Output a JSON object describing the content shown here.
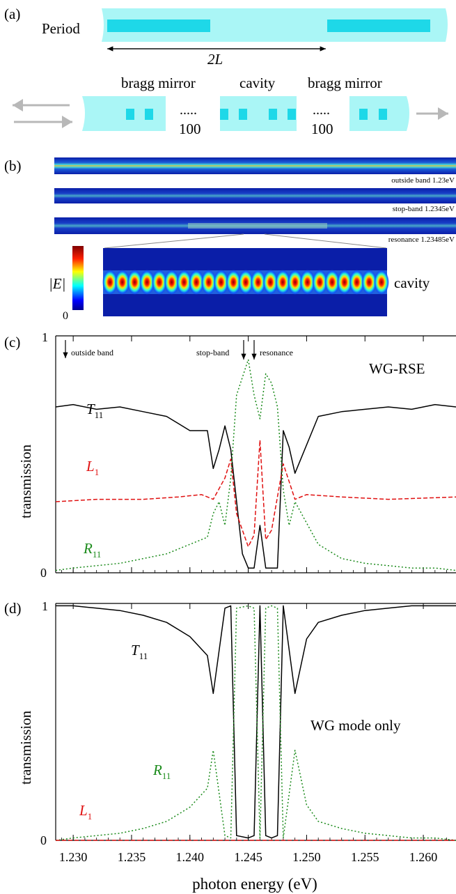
{
  "panel_a": {
    "label": "(a)",
    "period_label": "Period",
    "span_label": "2L",
    "mirror_left_label": "bragg mirror",
    "cavity_label": "cavity",
    "mirror_right_label": "bragg mirror",
    "dots_left": ".....",
    "count_left": "100",
    "dots_right": ".....",
    "count_right": "100",
    "colors": {
      "waveguide": "#aaf6f6",
      "block": "#1ed8e8",
      "arrow": "#b8b8b8"
    }
  },
  "panel_b": {
    "label": "(b)",
    "strip_labels": [
      "outside band 1.23eV",
      "stop-band 1.2345eV",
      "resonance 1.23485eV"
    ],
    "colorbar_label": "|E|",
    "colorbar_min": "0",
    "cavity_label": "cavity",
    "zoom_spot_count": 23
  },
  "panel_c": {
    "label": "(c)",
    "y_tick_top": "1",
    "y_tick_bottom": "0",
    "ylabel": "transmission",
    "annotation_outside": "outside band",
    "annotation_stop": "stop-band",
    "annotation_res": "resonance",
    "title": "WG-RSE",
    "label_T": "T",
    "label_T_sub": "11",
    "label_L": "L",
    "label_L_sub": "1",
    "label_R": "R",
    "label_R_sub": "11"
  },
  "panel_d": {
    "label": "(d)",
    "y_tick_top": "1",
    "y_tick_bottom": "0",
    "ylabel": "transmission",
    "title": "WG mode only",
    "label_T": "T",
    "label_T_sub": "11",
    "label_R": "R",
    "label_R_sub": "11",
    "label_L": "L",
    "label_L_sub": "1"
  },
  "x_axis": {
    "label": "photon energy (eV)",
    "ticks": [
      "1.230",
      "1.235",
      "1.240",
      "1.245",
      "1.250",
      "1.255",
      "1.260"
    ]
  },
  "chart_data": [
    {
      "type": "line",
      "panel": "c",
      "ylabel": "transmission",
      "xlim": [
        1.2285,
        1.2628
      ],
      "ylim": [
        0,
        1
      ],
      "series": [
        {
          "name": "T11",
          "color": "#000000",
          "style": "solid",
          "x": [
            1.2285,
            1.23,
            1.232,
            1.234,
            1.236,
            1.238,
            1.24,
            1.2415,
            1.242,
            1.2425,
            1.243,
            1.2435,
            1.2445,
            1.245,
            1.2455,
            1.246,
            1.2465,
            1.247,
            1.2475,
            1.248,
            1.2485,
            1.249,
            1.251,
            1.253,
            1.255,
            1.257,
            1.259,
            1.261,
            1.2628
          ],
          "y": [
            0.7,
            0.71,
            0.69,
            0.7,
            0.68,
            0.66,
            0.6,
            0.6,
            0.44,
            0.52,
            0.62,
            0.52,
            0.08,
            0.02,
            0.02,
            0.2,
            0.02,
            0.02,
            0.02,
            0.6,
            0.53,
            0.42,
            0.66,
            0.68,
            0.69,
            0.7,
            0.69,
            0.71,
            0.7
          ]
        },
        {
          "name": "L1",
          "color": "#e01010",
          "style": "dashed",
          "x": [
            1.2285,
            1.232,
            1.236,
            1.239,
            1.241,
            1.242,
            1.243,
            1.2435,
            1.244,
            1.245,
            1.2455,
            1.246,
            1.2465,
            1.247,
            1.248,
            1.249,
            1.25,
            1.253,
            1.257,
            1.2628
          ],
          "y": [
            0.3,
            0.31,
            0.31,
            0.32,
            0.33,
            0.31,
            0.4,
            0.48,
            0.25,
            0.11,
            0.16,
            0.56,
            0.14,
            0.18,
            0.46,
            0.31,
            0.33,
            0.32,
            0.31,
            0.32
          ]
        },
        {
          "name": "R11",
          "color": "#1a8a1a",
          "style": "dotted",
          "x": [
            1.2285,
            1.23,
            1.232,
            1.234,
            1.236,
            1.238,
            1.24,
            1.2415,
            1.242,
            1.2425,
            1.243,
            1.2435,
            1.244,
            1.245,
            1.2455,
            1.246,
            1.2465,
            1.247,
            1.2475,
            1.248,
            1.2485,
            1.249,
            1.251,
            1.253,
            1.255,
            1.257,
            1.259,
            1.261,
            1.2628
          ],
          "y": [
            0.01,
            0.02,
            0.03,
            0.04,
            0.06,
            0.08,
            0.12,
            0.15,
            0.25,
            0.3,
            0.2,
            0.4,
            0.75,
            0.9,
            0.75,
            0.65,
            0.84,
            0.8,
            0.7,
            0.35,
            0.2,
            0.3,
            0.12,
            0.06,
            0.04,
            0.03,
            0.02,
            0.02,
            0.01
          ]
        }
      ],
      "annotations": [
        {
          "text": "outside band",
          "x": 1.23
        },
        {
          "text": "stop-band",
          "x": 1.245
        },
        {
          "text": "resonance",
          "x": 1.246
        }
      ]
    },
    {
      "type": "line",
      "panel": "d",
      "xlabel": "photon energy (eV)",
      "ylabel": "transmission",
      "xlim": [
        1.2285,
        1.2628
      ],
      "ylim": [
        0,
        1
      ],
      "series": [
        {
          "name": "T11",
          "color": "#000000",
          "style": "solid",
          "x": [
            1.2285,
            1.23,
            1.232,
            1.234,
            1.236,
            1.238,
            1.24,
            1.2415,
            1.242,
            1.243,
            1.2435,
            1.244,
            1.245,
            1.2455,
            1.246,
            1.2465,
            1.247,
            1.2475,
            1.248,
            1.249,
            1.25,
            1.251,
            1.253,
            1.255,
            1.257,
            1.259,
            1.261,
            1.2628
          ],
          "y": [
            0.99,
            0.99,
            0.98,
            0.97,
            0.95,
            0.92,
            0.86,
            0.78,
            0.62,
            0.98,
            0.99,
            0.02,
            0.01,
            0.02,
            0.99,
            0.02,
            0.01,
            0.02,
            0.99,
            0.62,
            0.85,
            0.92,
            0.95,
            0.97,
            0.98,
            0.99,
            0.99,
            0.99
          ]
        },
        {
          "name": "R11",
          "color": "#1a8a1a",
          "style": "dotted",
          "x": [
            1.2285,
            1.23,
            1.232,
            1.234,
            1.236,
            1.238,
            1.24,
            1.2415,
            1.242,
            1.243,
            1.2435,
            1.244,
            1.245,
            1.2455,
            1.246,
            1.2465,
            1.247,
            1.2475,
            1.248,
            1.249,
            1.25,
            1.251,
            1.253,
            1.255,
            1.257,
            1.259,
            1.261,
            1.2628
          ],
          "y": [
            0.0,
            0.01,
            0.02,
            0.03,
            0.05,
            0.08,
            0.14,
            0.22,
            0.38,
            0.02,
            0.01,
            0.98,
            0.99,
            0.98,
            0.01,
            0.98,
            0.99,
            0.98,
            0.01,
            0.38,
            0.15,
            0.08,
            0.05,
            0.03,
            0.02,
            0.01,
            0.01,
            0.0
          ]
        },
        {
          "name": "L1",
          "color": "#e01010",
          "style": "dashed",
          "x": [
            1.2285,
            1.2628
          ],
          "y": [
            0,
            0
          ]
        }
      ]
    }
  ]
}
